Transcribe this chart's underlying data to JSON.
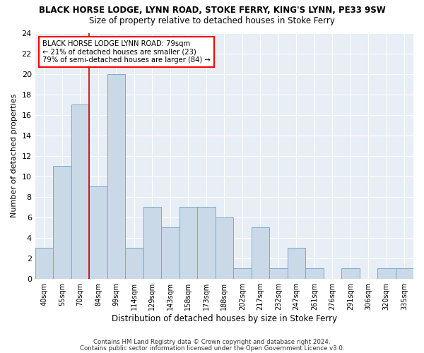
{
  "title1": "BLACK HORSE LODGE, LYNN ROAD, STOKE FERRY, KING'S LYNN, PE33 9SW",
  "title2": "Size of property relative to detached houses in Stoke Ferry",
  "xlabel": "Distribution of detached houses by size in Stoke Ferry",
  "ylabel": "Number of detached properties",
  "categories": [
    "40sqm",
    "55sqm",
    "70sqm",
    "84sqm",
    "99sqm",
    "114sqm",
    "129sqm",
    "143sqm",
    "158sqm",
    "173sqm",
    "188sqm",
    "202sqm",
    "217sqm",
    "232sqm",
    "247sqm",
    "261sqm",
    "276sqm",
    "291sqm",
    "306sqm",
    "320sqm",
    "335sqm"
  ],
  "values": [
    3,
    11,
    17,
    9,
    20,
    3,
    7,
    5,
    7,
    7,
    6,
    1,
    5,
    1,
    3,
    1,
    0,
    1,
    0,
    1,
    1
  ],
  "bar_color": "#c9d9e8",
  "bar_edge_color": "#7aaac8",
  "vline_color": "#cc0000",
  "vline_x_index": 2.5,
  "ylim": [
    0,
    24
  ],
  "yticks": [
    0,
    2,
    4,
    6,
    8,
    10,
    12,
    14,
    16,
    18,
    20,
    22,
    24
  ],
  "annotation_line1": "BLACK HORSE LODGE LYNN ROAD: 79sqm",
  "annotation_line2": "← 21% of detached houses are smaller (23)",
  "annotation_line3": "79% of semi-detached houses are larger (84) →",
  "plot_bg_color": "#e8eef5",
  "footer1": "Contains HM Land Registry data © Crown copyright and database right 2024.",
  "footer2": "Contains public sector information licensed under the Open Government Licence v3.0."
}
